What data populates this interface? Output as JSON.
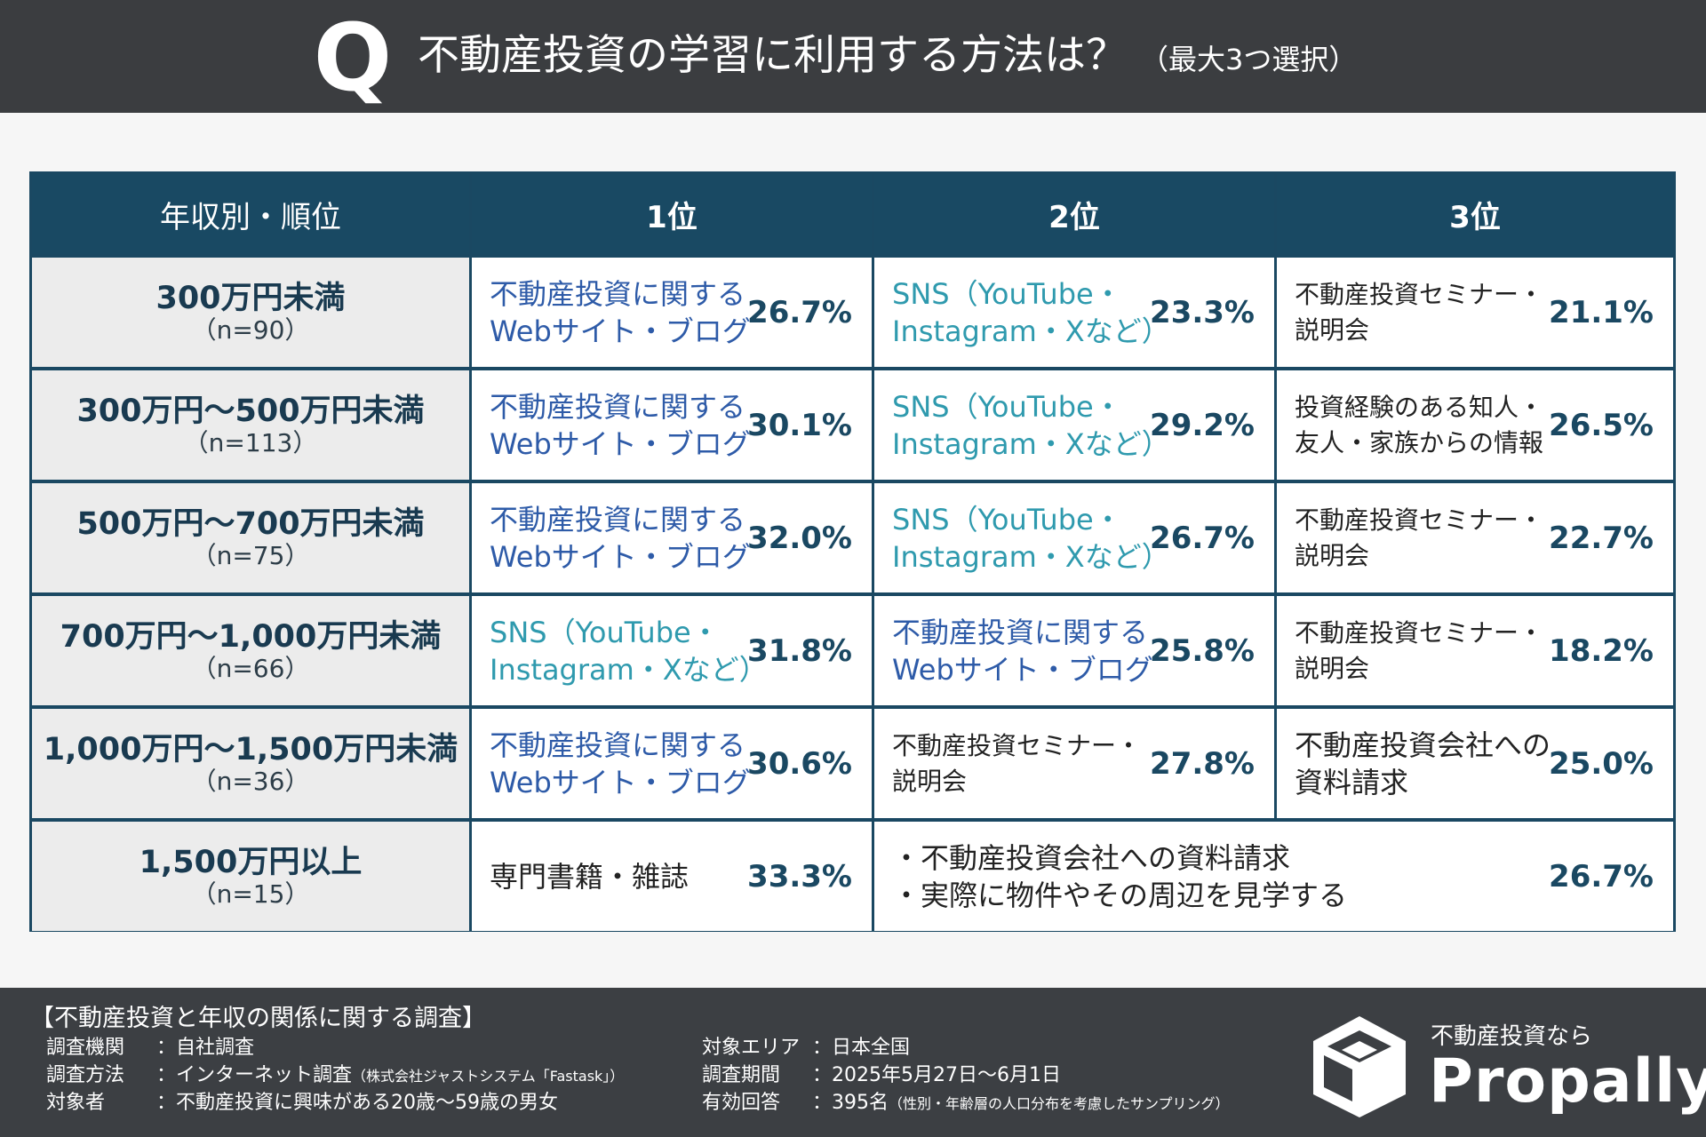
{
  "header": {
    "q": "Q",
    "title": "不動産投資の学習に利用する方法は？",
    "subtitle": "（最大3つ選択）"
  },
  "colors": {
    "header_bg": "#3b3d40",
    "table_header": "#194963",
    "web_text": "#2e5ba8",
    "sns_text": "#2f9aae",
    "percent_text": "#1a4862"
  },
  "chart_data": {
    "type": "table",
    "columns": [
      "年収別・順位",
      "1位",
      "2位",
      "3位"
    ],
    "rows": [
      {
        "income": "300万円未満",
        "n": "（n=90）",
        "ranks": [
          {
            "item": "不動産投資に関する\nWebサイト・ブログ",
            "pct": "26.7%",
            "value": 26.7,
            "kind": "web"
          },
          {
            "item": "SNS（YouTube・\nInstagram・Xなど）",
            "pct": "23.3%",
            "value": 23.3,
            "kind": "sns"
          },
          {
            "item": "不動産投資セミナー・\n説明会",
            "pct": "21.1%",
            "value": 21.1,
            "kind": "other"
          }
        ]
      },
      {
        "income": "300万円～500万円未満",
        "n": "（n=113）",
        "ranks": [
          {
            "item": "不動産投資に関する\nWebサイト・ブログ",
            "pct": "30.1%",
            "value": 30.1,
            "kind": "web"
          },
          {
            "item": "SNS（YouTube・\nInstagram・Xなど）",
            "pct": "29.2%",
            "value": 29.2,
            "kind": "sns"
          },
          {
            "item": "投資経験のある知人・\n友人・家族からの情報",
            "pct": "26.5%",
            "value": 26.5,
            "kind": "other"
          }
        ]
      },
      {
        "income": "500万円～700万円未満",
        "n": "（n=75）",
        "ranks": [
          {
            "item": "不動産投資に関する\nWebサイト・ブログ",
            "pct": "32.0%",
            "value": 32.0,
            "kind": "web"
          },
          {
            "item": "SNS（YouTube・\nInstagram・Xなど）",
            "pct": "26.7%",
            "value": 26.7,
            "kind": "sns"
          },
          {
            "item": "不動産投資セミナー・\n説明会",
            "pct": "22.7%",
            "value": 22.7,
            "kind": "other"
          }
        ]
      },
      {
        "income": "700万円～1,000万円未満",
        "n": "（n=66）",
        "ranks": [
          {
            "item": "SNS（YouTube・\nInstagram・Xなど）",
            "pct": "31.8%",
            "value": 31.8,
            "kind": "sns"
          },
          {
            "item": "不動産投資に関する\nWebサイト・ブログ",
            "pct": "25.8%",
            "value": 25.8,
            "kind": "web"
          },
          {
            "item": "不動産投資セミナー・\n説明会",
            "pct": "18.2%",
            "value": 18.2,
            "kind": "other"
          }
        ]
      },
      {
        "income": "1,000万円～1,500万円未満",
        "n": "（n=36）",
        "ranks": [
          {
            "item": "不動産投資に関する\nWebサイト・ブログ",
            "pct": "30.6%",
            "value": 30.6,
            "kind": "web"
          },
          {
            "item": "不動産投資セミナー・\n説明会",
            "pct": "27.8%",
            "value": 27.8,
            "kind": "other"
          },
          {
            "item": "不動産投資会社への\n資料請求",
            "pct": "25.0%",
            "value": 25.0,
            "kind": "other-large"
          }
        ]
      },
      {
        "income": "1,500万円以上",
        "n": "（n=15）",
        "ranks": [
          {
            "item": "専門書籍・雑誌",
            "pct": "33.3%",
            "value": 33.3,
            "kind": "other-large"
          },
          {
            "item": "・不動産投資会社への資料請求\n・実際に物件やその周辺を見学する",
            "pct": "26.7%",
            "value": 26.7,
            "kind": "other-large",
            "merged": true
          }
        ]
      }
    ]
  },
  "footer": {
    "title": "【不動産投資と年収の関係に関する調査】",
    "left": [
      {
        "label": "調査機関",
        "value": "：自社調査",
        "note": ""
      },
      {
        "label": "調査方法",
        "value": "：インターネット調査",
        "note": "（株式会社ジャストシステム「Fastask」）"
      },
      {
        "label": "対象者",
        "value": "：不動産投資に興味がある20歳～59歳の男女",
        "note": ""
      }
    ],
    "right": [
      {
        "label": "対象エリア",
        "value": "：日本全国",
        "note": ""
      },
      {
        "label": "調査期間",
        "value": "：2025年5月27日～6月1日",
        "note": ""
      },
      {
        "label": "有効回答",
        "value": "：395名",
        "note": "（性別・年齢層の人口分布を考慮したサンプリング）"
      }
    ],
    "logo_tag": "不動産投資なら",
    "logo_name": "Propally"
  }
}
